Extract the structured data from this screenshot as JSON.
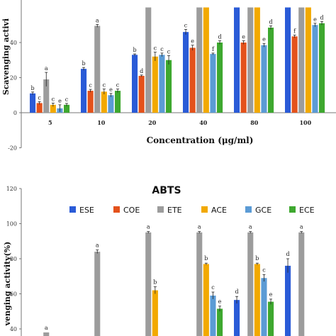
{
  "chart_data": [
    {
      "type": "bar",
      "title": "",
      "ylabel": "Scavenging activi",
      "xlabel": "Concentration (μg/ml)",
      "ylim": [
        -20,
        60
      ],
      "yticks": [
        -20,
        0,
        20,
        40
      ],
      "categories": [
        "5",
        "10",
        "20",
        "40",
        "80",
        "100"
      ],
      "series": [
        {
          "name": "ESE",
          "color": "#2a5bd7",
          "values": [
            11,
            25,
            33,
            46,
            60,
            60
          ],
          "errors": [
            0.8,
            0.8,
            0.5,
            1.5,
            0,
            0
          ],
          "labels": [
            "b",
            "b",
            "b",
            "c",
            "",
            ""
          ]
        },
        {
          "name": "COE",
          "color": "#e4521b",
          "values": [
            5.5,
            12.5,
            21,
            37,
            40,
            43.5
          ],
          "errors": [
            0.8,
            0.8,
            0.5,
            1.5,
            1,
            0.8
          ],
          "labels": [
            "c",
            "c",
            "d",
            "e",
            "e",
            "f"
          ]
        },
        {
          "name": "ETE",
          "color": "#9c9c9c",
          "values": [
            19,
            49.5,
            60,
            60,
            60,
            60
          ],
          "errors": [
            4,
            0.8,
            0,
            0,
            0,
            0
          ],
          "labels": [
            "a",
            "a",
            "",
            "",
            "",
            ""
          ]
        },
        {
          "name": "ACE",
          "color": "#f2a900",
          "values": [
            4.5,
            12,
            32,
            60,
            60,
            60
          ],
          "errors": [
            1,
            1.5,
            2.5,
            0,
            0,
            0
          ],
          "labels": [
            "c",
            "c",
            "c",
            "",
            "",
            ""
          ]
        },
        {
          "name": "GCE",
          "color": "#5b9bd5",
          "values": [
            2.5,
            10,
            33,
            33.5,
            38.5,
            50
          ],
          "errors": [
            2,
            1,
            1,
            0.5,
            1,
            1
          ],
          "labels": [
            "e",
            "e",
            "c",
            "f",
            "e",
            "e"
          ]
        },
        {
          "name": "ECE",
          "color": "#3ea82f",
          "values": [
            4.5,
            12.5,
            30,
            40,
            48.5,
            51
          ],
          "errors": [
            0.8,
            1,
            2.5,
            1,
            1,
            1
          ],
          "labels": [
            "c",
            "c",
            "c",
            "d",
            "d",
            "d"
          ]
        }
      ]
    },
    {
      "type": "bar",
      "title": "ABTS",
      "ylabel": "venging activity(%)",
      "xlabel": "",
      "ylim": [
        40,
        120
      ],
      "yticks": [
        40,
        60,
        80,
        100,
        120
      ],
      "categories": [
        "5",
        "10",
        "20",
        "40",
        "80",
        "100"
      ],
      "legend": [
        "ESE",
        "COE",
        "ETE",
        "ACE",
        "GCE",
        "ECE"
      ],
      "series": [
        {
          "name": "ESE",
          "color": "#2a5bd7",
          "values": [
            null,
            null,
            null,
            null,
            56.5,
            76
          ],
          "errors": [
            0,
            0,
            0,
            0,
            2,
            4
          ],
          "labels": [
            "",
            "",
            "",
            "",
            "d",
            "d"
          ]
        },
        {
          "name": "COE",
          "color": "#e4521b",
          "values": [
            null,
            null,
            null,
            null,
            null,
            null
          ],
          "errors": [
            0,
            0,
            0,
            0,
            0,
            0
          ],
          "labels": [
            "",
            "",
            "",
            "",
            "",
            ""
          ]
        },
        {
          "name": "ETE",
          "color": "#9c9c9c",
          "values": [
            38,
            84,
            95,
            95,
            95,
            95
          ],
          "errors": [
            0,
            1,
            0.5,
            0.5,
            0.5,
            0.5
          ],
          "labels": [
            "a",
            "a",
            "a",
            "a",
            "a",
            "a"
          ]
        },
        {
          "name": "ACE",
          "color": "#f2a900",
          "values": [
            null,
            null,
            62,
            77,
            77,
            null
          ],
          "errors": [
            0,
            0,
            2,
            0.5,
            0.5,
            0
          ],
          "labels": [
            "",
            "",
            "b",
            "b",
            "b",
            ""
          ]
        },
        {
          "name": "GCE",
          "color": "#5b9bd5",
          "values": [
            null,
            null,
            null,
            59,
            69,
            null
          ],
          "errors": [
            0,
            0,
            0,
            2,
            2,
            0
          ],
          "labels": [
            "",
            "",
            "",
            "c",
            "c",
            ""
          ]
        },
        {
          "name": "ECE",
          "color": "#3ea82f",
          "values": [
            null,
            null,
            null,
            51.5,
            55.5,
            null
          ],
          "errors": [
            0,
            0,
            0,
            1.5,
            1.5,
            0
          ],
          "labels": [
            "",
            "",
            "",
            "e",
            "e",
            ""
          ]
        }
      ]
    }
  ]
}
